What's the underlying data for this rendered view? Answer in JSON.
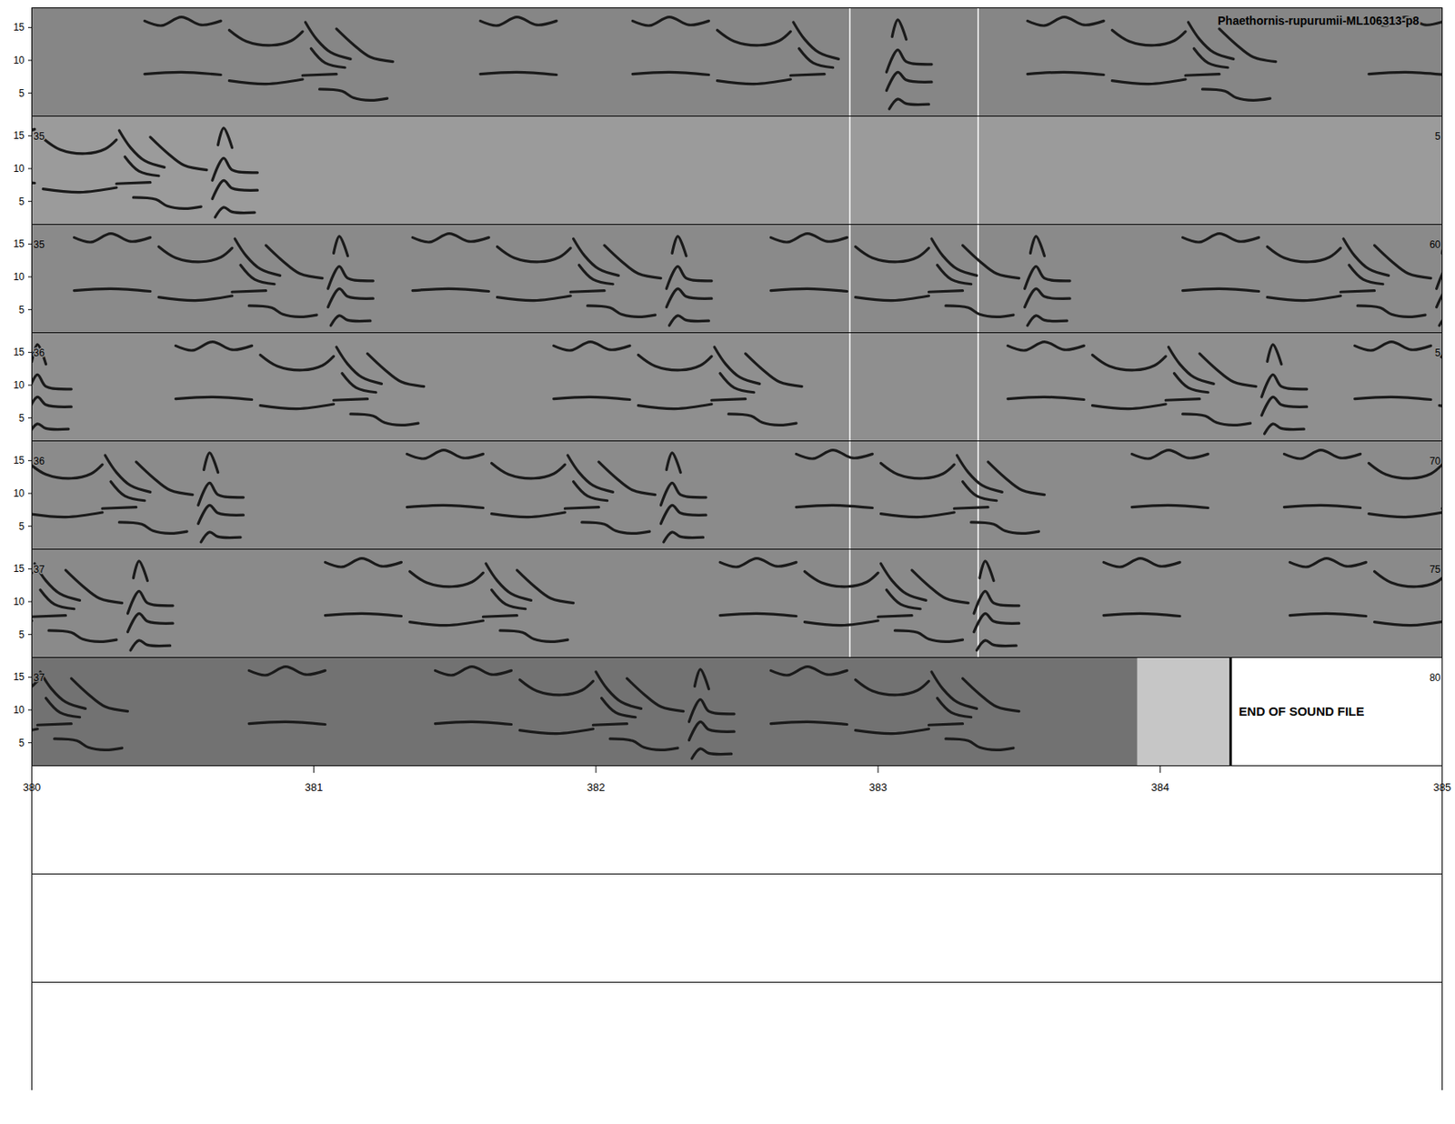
{
  "chart_data": {
    "type": "spectrogram",
    "title": "Phaethornis-rupurumii-ML106313-p8",
    "ylim": [
      1.5,
      18
    ],
    "yticks": [
      5,
      10,
      15
    ],
    "color": "#1a1a1a",
    "panels": [
      {
        "xlim": [
          345,
          350
        ],
        "color": "#868686",
        "markers": [
          347.9,
          348.355
        ]
      },
      {
        "xlim": [
          350,
          355
        ],
        "color": "#9b9b9b",
        "left_label": "35",
        "right_label": "5",
        "markers": [
          352.9,
          353.355
        ]
      },
      {
        "xlim": [
          355,
          360
        ],
        "color": "#8a8a8a",
        "left_label": "35",
        "right_label": "60",
        "markers": [
          357.9,
          358.355
        ]
      },
      {
        "xlim": [
          360,
          365
        ],
        "color": "#8f8f8f",
        "left_label": "36",
        "right_label": "5",
        "markers": [
          362.9,
          363.355
        ]
      },
      {
        "xlim": [
          365,
          370
        ],
        "color": "#8b8b8b",
        "left_label": "36",
        "right_label": "70",
        "markers": [
          367.9,
          368.355
        ]
      },
      {
        "xlim": [
          370,
          375
        ],
        "color": "#8a8a8a",
        "left_label": "37",
        "right_label": "75",
        "markers": [
          372.9,
          373.355
        ]
      },
      {
        "xlim": [
          375,
          380
        ],
        "color": "#727272",
        "left_label": "37",
        "right_label": "80",
        "fade": [
          378.92,
          379.25
        ],
        "end": {
          "time": 379.25,
          "label": "END OF SOUND FILE"
        }
      },
      {
        "xlim": [
          380,
          385
        ],
        "xticks": [
          380,
          381,
          382,
          383,
          384,
          385
        ]
      },
      {
        "xlim": [
          385,
          390
        ]
      },
      {
        "xlim": [
          390,
          395
        ]
      }
    ],
    "note_shapes": [
      [
        [
          [
            0,
            7.9
          ],
          [
            0.13,
            8.2
          ],
          [
            0.27,
            7.8
          ]
        ],
        [
          [
            0,
            16
          ],
          [
            0.06,
            15.3
          ],
          [
            0.13,
            16.6
          ],
          [
            0.2,
            15.4
          ],
          [
            0.27,
            16
          ]
        ]
      ],
      [
        [
          [
            0.3,
            6.9
          ],
          [
            0.43,
            6.4
          ],
          [
            0.56,
            7.1
          ]
        ],
        [
          [
            0.3,
            14.6
          ],
          [
            0.36,
            12.9
          ],
          [
            0.45,
            12.3
          ],
          [
            0.52,
            13
          ],
          [
            0.56,
            14.4
          ]
        ]
      ],
      [
        [
          [
            0.56,
            7.7
          ],
          [
            0.68,
            7.9
          ]
        ],
        [
          [
            0.57,
            15.8
          ],
          [
            0.61,
            13.2
          ],
          [
            0.66,
            11.2
          ],
          [
            0.73,
            10.2
          ]
        ],
        [
          [
            0.59,
            11.8
          ],
          [
            0.64,
            9.6
          ],
          [
            0.71,
            8.9
          ]
        ]
      ],
      [
        [
          [
            0.62,
            5.6
          ],
          [
            0.7,
            5.3
          ],
          [
            0.74,
            4.3
          ],
          [
            0.8,
            3.9
          ],
          [
            0.86,
            4.2
          ]
        ],
        [
          [
            0.68,
            14.8
          ],
          [
            0.74,
            12.4
          ],
          [
            0.8,
            10.5
          ],
          [
            0.88,
            9.8
          ]
        ]
      ],
      [
        [
          [
            0.9,
            8.2
          ],
          [
            0.94,
            11.6
          ],
          [
            0.97,
            9.8
          ],
          [
            1.06,
            9.4
          ]
        ],
        [
          [
            0.9,
            5.4
          ],
          [
            0.94,
            8.2
          ],
          [
            0.97,
            7
          ],
          [
            1.06,
            6.7
          ]
        ],
        [
          [
            0.91,
            2.6
          ],
          [
            0.94,
            4.1
          ],
          [
            0.97,
            3.4
          ],
          [
            1.05,
            3.3
          ]
        ],
        [
          [
            0.92,
            13.6
          ],
          [
            0.94,
            16.2
          ],
          [
            0.97,
            13.2
          ]
        ]
      ]
    ],
    "phrases": [
      {
        "t": 345.4,
        "notes": [
          0,
          1,
          2,
          3
        ]
      },
      {
        "t": 346.59,
        "notes": [
          0
        ]
      },
      {
        "t": 347.13,
        "notes": [
          0,
          1,
          2,
          4
        ]
      },
      {
        "t": 348.53,
        "notes": [
          0,
          1,
          2,
          3
        ]
      },
      {
        "t": 349.74,
        "notes": [
          0,
          1,
          2,
          3,
          4
        ]
      },
      {
        "t": 355.15,
        "notes": [
          0,
          1,
          2,
          3,
          4
        ]
      },
      {
        "t": 356.35,
        "notes": [
          0,
          1,
          2,
          3,
          4
        ]
      },
      {
        "t": 357.62,
        "notes": [
          0,
          1,
          2,
          3,
          4
        ]
      },
      {
        "t": 359.08,
        "notes": [
          0,
          1,
          2,
          3,
          4
        ]
      },
      {
        "t": 360.51,
        "notes": [
          0,
          1,
          2,
          3
        ]
      },
      {
        "t": 361.85,
        "notes": [
          0,
          1,
          2,
          3
        ]
      },
      {
        "t": 363.46,
        "notes": [
          0,
          1,
          2,
          3,
          4
        ]
      },
      {
        "t": 364.69,
        "notes": [
          0,
          1,
          2,
          3,
          4
        ]
      },
      {
        "t": 366.33,
        "notes": [
          0,
          1,
          2,
          3,
          4
        ]
      },
      {
        "t": 367.71,
        "notes": [
          0,
          1,
          2,
          3
        ]
      },
      {
        "t": 368.9,
        "notes": [
          0
        ]
      },
      {
        "t": 369.44,
        "notes": [
          0,
          1,
          2,
          3,
          4
        ]
      },
      {
        "t": 371.04,
        "notes": [
          0,
          1,
          2,
          3
        ]
      },
      {
        "t": 372.44,
        "notes": [
          0,
          1,
          2,
          3,
          4
        ]
      },
      {
        "t": 373.8,
        "notes": [
          0
        ]
      },
      {
        "t": 374.46,
        "notes": [
          0,
          1,
          2,
          3
        ]
      },
      {
        "t": 375.77,
        "notes": [
          0
        ]
      },
      {
        "t": 376.43,
        "notes": [
          0,
          1,
          2,
          3,
          4
        ]
      },
      {
        "t": 377.62,
        "notes": [
          0,
          1,
          2,
          3
        ]
      }
    ]
  }
}
